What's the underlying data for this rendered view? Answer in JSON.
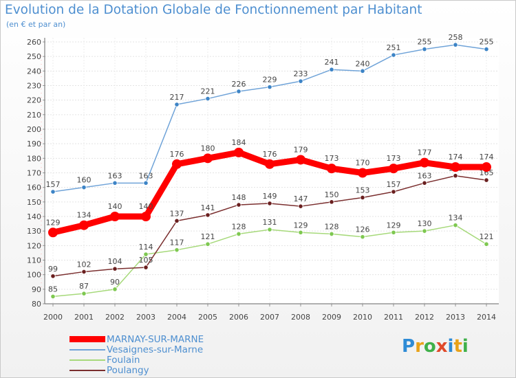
{
  "header": {
    "title": "Evolution de la Dotation Globale de Fonctionnement par Habitant",
    "subtitle": "(en € et par an)"
  },
  "brand": {
    "letters": [
      "P",
      "r",
      "o",
      "x",
      "i",
      "t",
      "i"
    ],
    "colors": [
      "#2e8bd6",
      "#e8a21a",
      "#3fb04a",
      "#e04a2a",
      "#2e8bd6",
      "#e8a21a",
      "#3fb04a"
    ]
  },
  "chart_data": {
    "type": "line",
    "title": "Evolution de la Dotation Globale de Fonctionnement par Habitant",
    "subtitle": "(en € et par an)",
    "xlabel": "",
    "ylabel": "",
    "ylim": [
      80,
      260
    ],
    "ytick_step": 10,
    "grid": "horizontal",
    "legend_position": "bottom-left",
    "categories": [
      "2000",
      "2001",
      "2002",
      "2003",
      "2004",
      "2005",
      "2006",
      "2007",
      "2008",
      "2009",
      "2010",
      "2011",
      "2012",
      "2013",
      "2014"
    ],
    "series": [
      {
        "name": "Vesaignes-sur-Marne",
        "color": "#6fa3d8",
        "marker": "#3d84c6",
        "values": [
          157,
          160,
          163,
          163,
          217,
          221,
          226,
          229,
          233,
          241,
          240,
          251,
          255,
          258,
          255
        ]
      },
      {
        "name": "Foulain",
        "color": "#a6d97a",
        "marker": "#7ec850",
        "values": [
          85,
          87,
          90,
          114,
          117,
          121,
          128,
          131,
          129,
          128,
          126,
          129,
          130,
          134,
          121
        ]
      },
      {
        "name": "Poulangy",
        "color": "#7a2e2e",
        "marker": "#6a1f1f",
        "values": [
          99,
          102,
          104,
          105,
          137,
          141,
          148,
          149,
          147,
          150,
          153,
          157,
          163,
          168,
          165
        ]
      },
      {
        "name": "MARNAY-SUR-MARNE",
        "color": "#ff0000",
        "marker": "#ff0000",
        "bold": true,
        "values": [
          129,
          134,
          140,
          140,
          176,
          180,
          184,
          176,
          179,
          173,
          170,
          173,
          177,
          174,
          174
        ]
      }
    ],
    "legend": [
      "MARNAY-SUR-MARNE",
      "Vesaignes-sur-Marne",
      "Foulain",
      "Poulangy"
    ]
  }
}
